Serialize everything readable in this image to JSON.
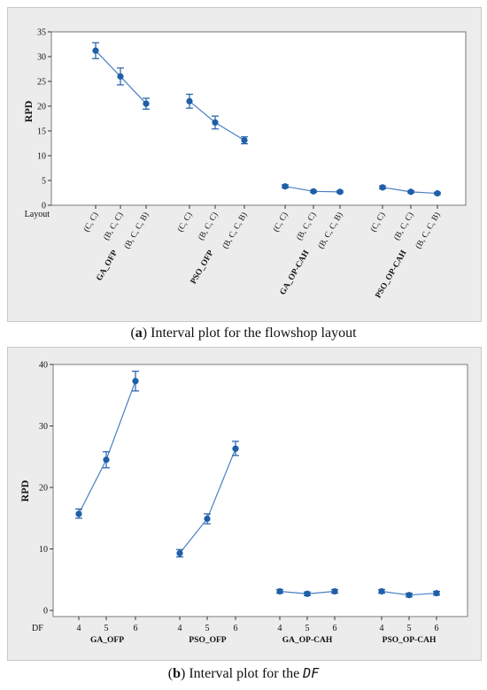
{
  "figure": {
    "caption_a": {
      "label": "a",
      "text": " Interval plot for the flowshop layout"
    },
    "caption_b": {
      "label": "b",
      "text": " Interval plot for the ",
      "italic": "DF"
    }
  },
  "colors": {
    "series": "#1f5fa8",
    "line": "#4a7fc1",
    "panel_bg": "#ececec",
    "plot_bg": "#ffffff"
  },
  "chart_data": [
    {
      "type": "interval",
      "ylabel": "RPD",
      "xlabel": "Layout",
      "ylim": [
        0,
        35
      ],
      "yticks": [
        0,
        5,
        10,
        15,
        20,
        25,
        30,
        35
      ],
      "groups": [
        {
          "name": "GA_OFP",
          "categories": [
            "(C, C)",
            "(B, C, C)",
            "(B, C, C, B)"
          ],
          "values": [
            31.2,
            26.0,
            20.5
          ],
          "lower": [
            29.6,
            24.3,
            19.4
          ],
          "upper": [
            32.8,
            27.7,
            21.6
          ]
        },
        {
          "name": "PSO_OFP",
          "categories": [
            "(C, C)",
            "(B, C, C)",
            "(B, C, C, B)"
          ],
          "values": [
            21.0,
            16.7,
            13.1
          ],
          "lower": [
            19.6,
            15.4,
            12.4
          ],
          "upper": [
            22.4,
            18.0,
            13.8
          ]
        },
        {
          "name": "GA_OP-CAH",
          "categories": [
            "(C, C)",
            "(B, C, C)",
            "(B, C, C, B)"
          ],
          "values": [
            3.8,
            2.8,
            2.7
          ],
          "lower": [
            3.5,
            2.6,
            2.5
          ],
          "upper": [
            4.1,
            3.0,
            2.9
          ]
        },
        {
          "name": "PSO_OP-CAH",
          "categories": [
            "(C, C)",
            "(B, C, C)",
            "(B, C, C, B)"
          ],
          "values": [
            3.6,
            2.7,
            2.4
          ],
          "lower": [
            3.3,
            2.5,
            2.2
          ],
          "upper": [
            3.9,
            2.9,
            2.6
          ]
        }
      ]
    },
    {
      "type": "interval",
      "ylabel": "RPD",
      "xlabel": "DF",
      "ylim": [
        -1,
        40
      ],
      "yticks": [
        0,
        10,
        20,
        30,
        40
      ],
      "groups": [
        {
          "name": "GA_OFP",
          "categories": [
            "4",
            "5",
            "6"
          ],
          "values": [
            15.7,
            24.5,
            37.3
          ],
          "lower": [
            15.0,
            23.2,
            35.7
          ],
          "upper": [
            16.5,
            25.8,
            38.9
          ]
        },
        {
          "name": "PSO_OFP",
          "categories": [
            "4",
            "5",
            "6"
          ],
          "values": [
            9.3,
            14.9,
            26.3
          ],
          "lower": [
            8.7,
            14.1,
            25.2
          ],
          "upper": [
            9.9,
            15.7,
            27.5
          ]
        },
        {
          "name": "GA_OP-CAH",
          "categories": [
            "4",
            "5",
            "6"
          ],
          "values": [
            3.1,
            2.7,
            3.1
          ],
          "lower": [
            2.8,
            2.4,
            2.8
          ],
          "upper": [
            3.4,
            3.0,
            3.4
          ]
        },
        {
          "name": "PSO_OP-CAH",
          "categories": [
            "4",
            "5",
            "6"
          ],
          "values": [
            3.1,
            2.5,
            2.8
          ],
          "lower": [
            2.8,
            2.2,
            2.5
          ],
          "upper": [
            3.4,
            2.8,
            3.1
          ]
        }
      ]
    }
  ]
}
